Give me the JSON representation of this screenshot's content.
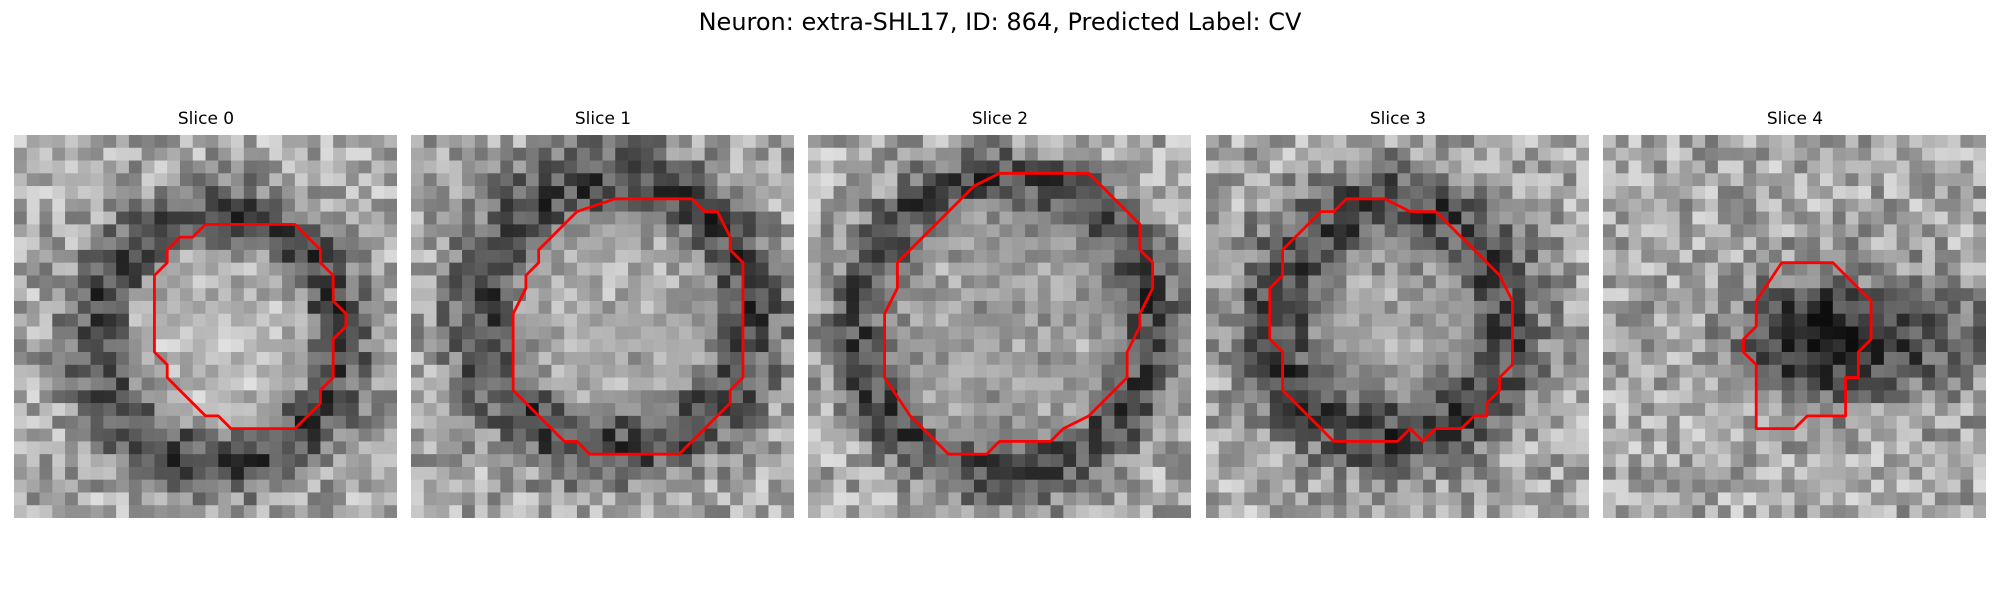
{
  "figure": {
    "title": "Neuron: extra-SHL17, ID: 864, Predicted Label: CV"
  },
  "contour_color": "#ff0000",
  "slices": [
    {
      "title": "Slice 0"
    },
    {
      "title": "Slice 1"
    },
    {
      "title": "Slice 2"
    },
    {
      "title": "Slice 3"
    },
    {
      "title": "Slice 4"
    }
  ]
}
